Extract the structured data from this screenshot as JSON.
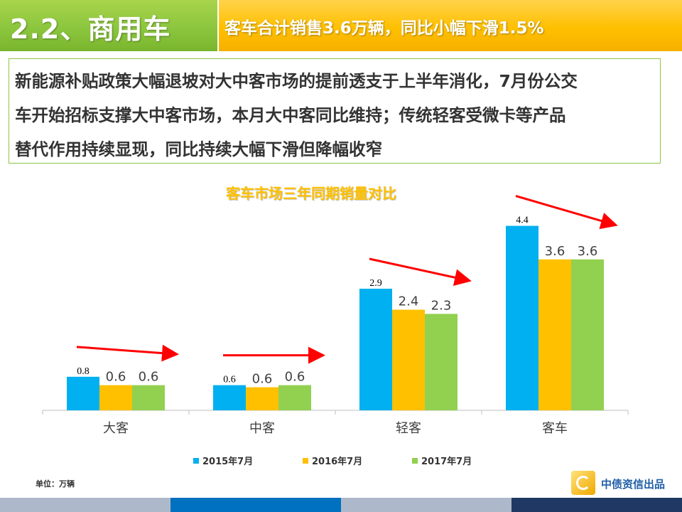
{
  "header": {
    "section_title": "2.2、商用车",
    "headline": "客车合计销售3.6万辆，同比小幅下滑1.5%"
  },
  "summary": {
    "lines": [
      "新能源补贴政策大幅退坡对大中客市场的提前透支于上半年消化，7月份公交",
      "车开始招标支撑大中客市场，本月大中客同比维持；传统轻客受微卡等产品",
      "替代作用持续显现，同比持续大幅下滑但降幅收窄"
    ]
  },
  "chart_data": {
    "type": "bar",
    "title": "客车市场三年同期销量对比",
    "categories": [
      "大客",
      "中客",
      "轻客",
      "客车"
    ],
    "series": [
      {
        "name": "2015年7月",
        "values": [
          0.8,
          0.6,
          2.9,
          4.4
        ],
        "labels": [
          "0.8",
          "0.6",
          "2.9",
          "4.4"
        ],
        "color": "#00b0f0"
      },
      {
        "name": "2016年7月",
        "values": [
          0.6,
          0.55,
          2.4,
          3.6
        ],
        "labels": [
          "0.6",
          "0.6",
          "2.4",
          "3.6"
        ],
        "color": "#ffc000"
      },
      {
        "name": "2017年7月",
        "values": [
          0.6,
          0.6,
          2.3,
          3.6
        ],
        "labels": [
          "0.6",
          "0.6",
          "2.3",
          "3.6"
        ],
        "color": "#92d050"
      }
    ],
    "ylim": [
      0,
      4.8
    ],
    "legend_position": "bottom",
    "grid": false,
    "arrow_color": "#ff0000",
    "unit_note": "单位：万辆"
  },
  "branding": {
    "logo_text": "中债资信出品"
  },
  "footer": {
    "colors": [
      "#adb9ca",
      "#0070c0",
      "#adb9ca",
      "#1f3864"
    ]
  }
}
